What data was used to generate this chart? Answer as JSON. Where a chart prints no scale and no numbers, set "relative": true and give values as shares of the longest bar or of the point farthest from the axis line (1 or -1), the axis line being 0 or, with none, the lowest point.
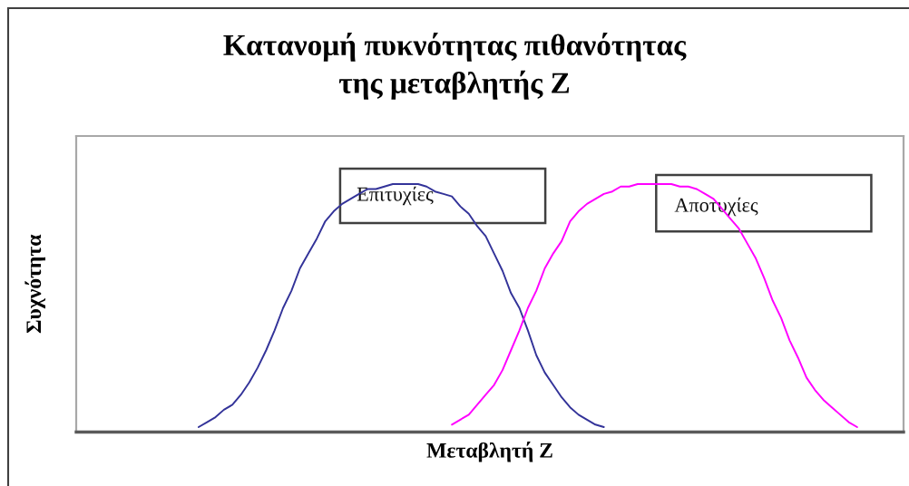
{
  "chart_data": {
    "type": "line",
    "title": "Κατανομή πυκνότητας πιθανότητας\nτης μεταβλητής Z",
    "xlabel": "Μεταβλητή Z",
    "ylabel": "Συχνότητα",
    "relative": true,
    "categories": [
      null,
      null,
      null,
      null,
      null,
      null,
      null,
      null,
      null,
      null,
      null,
      null,
      null,
      null,
      null,
      null,
      null,
      null,
      null,
      null,
      null,
      null,
      null,
      null,
      null,
      null,
      null,
      null,
      null,
      null,
      null,
      null,
      null,
      null,
      null,
      null,
      null,
      null,
      null,
      null,
      null,
      null,
      null,
      null,
      null,
      null,
      null,
      null,
      null,
      null,
      null,
      null,
      null,
      null,
      null,
      null,
      null,
      null,
      null,
      null,
      null,
      null,
      null,
      null,
      null,
      null,
      null,
      null,
      null,
      null,
      null,
      null,
      null,
      null,
      null,
      null,
      null,
      null,
      null,
      null,
      null,
      null,
      null,
      null,
      null,
      null,
      null,
      null,
      null,
      null,
      null,
      null,
      null,
      null,
      null,
      null,
      null,
      null
    ],
    "series": [
      {
        "name": "Επιτυχίες",
        "color": "#333399",
        "values": [
          null,
          null,
          null,
          null,
          null,
          null,
          null,
          null,
          null,
          null,
          null,
          null,
          null,
          null,
          0.02,
          0.04,
          0.06,
          0.09,
          0.11,
          0.15,
          0.2,
          0.26,
          0.33,
          0.41,
          0.5,
          0.57,
          0.66,
          0.72,
          0.78,
          0.85,
          0.89,
          0.92,
          0.94,
          0.96,
          0.98,
          0.98,
          0.99,
          1,
          1,
          1,
          1,
          0.99,
          0.97,
          0.96,
          0.95,
          0.91,
          0.88,
          0.83,
          0.79,
          0.72,
          0.65,
          0.56,
          0.5,
          0.41,
          0.31,
          0.24,
          0.19,
          0.14,
          0.1,
          0.07,
          0.05,
          0.03,
          0.02,
          null,
          null,
          null,
          null,
          null,
          null,
          null,
          null,
          null,
          null,
          null,
          null,
          null,
          null,
          null,
          null,
          null,
          null,
          null,
          null,
          null,
          null,
          null,
          null,
          null,
          null,
          null,
          null,
          null,
          null,
          null,
          null,
          null,
          null,
          null
        ]
      },
      {
        "name": "Αποτυχίες",
        "color": "#ff00ff",
        "values": [
          null,
          null,
          null,
          null,
          null,
          null,
          null,
          null,
          null,
          null,
          null,
          null,
          null,
          null,
          null,
          null,
          null,
          null,
          null,
          null,
          null,
          null,
          null,
          null,
          null,
          null,
          null,
          null,
          null,
          null,
          null,
          null,
          null,
          null,
          null,
          null,
          null,
          null,
          null,
          null,
          null,
          null,
          null,
          null,
          0.03,
          0.05,
          0.07,
          0.11,
          0.15,
          0.19,
          0.25,
          0.33,
          0.41,
          0.5,
          0.57,
          0.66,
          0.72,
          0.77,
          0.85,
          0.89,
          0.92,
          0.94,
          0.96,
          0.97,
          0.99,
          0.99,
          1,
          1,
          1,
          1,
          1,
          0.99,
          0.99,
          0.98,
          0.96,
          0.94,
          0.9,
          0.86,
          0.82,
          0.76,
          0.7,
          0.62,
          0.53,
          0.46,
          0.37,
          0.3,
          0.22,
          0.17,
          0.13,
          0.1,
          0.07,
          0.04,
          0.02,
          null,
          null,
          null,
          null,
          null
        ]
      }
    ]
  }
}
